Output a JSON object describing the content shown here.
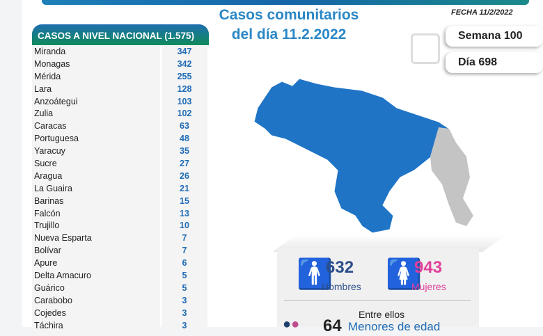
{
  "header": {
    "title_line1": "Casos comunitarios",
    "title_line2": "del día 11.2.2022",
    "fecha": "FECHA 11/2/2022",
    "semana": "Semana 100",
    "dia": "Día 698"
  },
  "table": {
    "title": "CASOS A NIVEL NACIONAL  (1.575)",
    "rows": [
      {
        "name": "Miranda",
        "value": "347"
      },
      {
        "name": "Monagas",
        "value": "342"
      },
      {
        "name": "Mérida",
        "value": "255"
      },
      {
        "name": "Lara",
        "value": "128"
      },
      {
        "name": "Anzoátegui",
        "value": "103"
      },
      {
        "name": "Zulia",
        "value": "102"
      },
      {
        "name": "Caracas",
        "value": "63"
      },
      {
        "name": "Portuguesa",
        "value": "48"
      },
      {
        "name": "Yaracuy",
        "value": "35"
      },
      {
        "name": "Sucre",
        "value": "27"
      },
      {
        "name": "Aragua",
        "value": "26"
      },
      {
        "name": "La Guaira",
        "value": "21"
      },
      {
        "name": "Barinas",
        "value": "15"
      },
      {
        "name": "Falcón",
        "value": "13"
      },
      {
        "name": "Trujillo",
        "value": "10"
      },
      {
        "name": "Nueva Esparta",
        "value": "7"
      },
      {
        "name": "Bolívar",
        "value": "7"
      },
      {
        "name": "Apure",
        "value": "6"
      },
      {
        "name": "Delta Amacuro",
        "value": "5"
      },
      {
        "name": "Guárico",
        "value": "5"
      },
      {
        "name": "Carabobo",
        "value": "3"
      },
      {
        "name": "Cojedes",
        "value": "3"
      },
      {
        "name": "Táchira",
        "value": "3"
      }
    ]
  },
  "stats": {
    "men": "632",
    "men_label": "Hombres",
    "women": "943",
    "women_label": "Mujeres",
    "entre": "Entre ellos",
    "minors": "64",
    "minors_label": "Menores de edad"
  },
  "colors": {
    "blue": "#1f6bb5",
    "pink": "#e0409a",
    "map": "#1f74c6"
  }
}
